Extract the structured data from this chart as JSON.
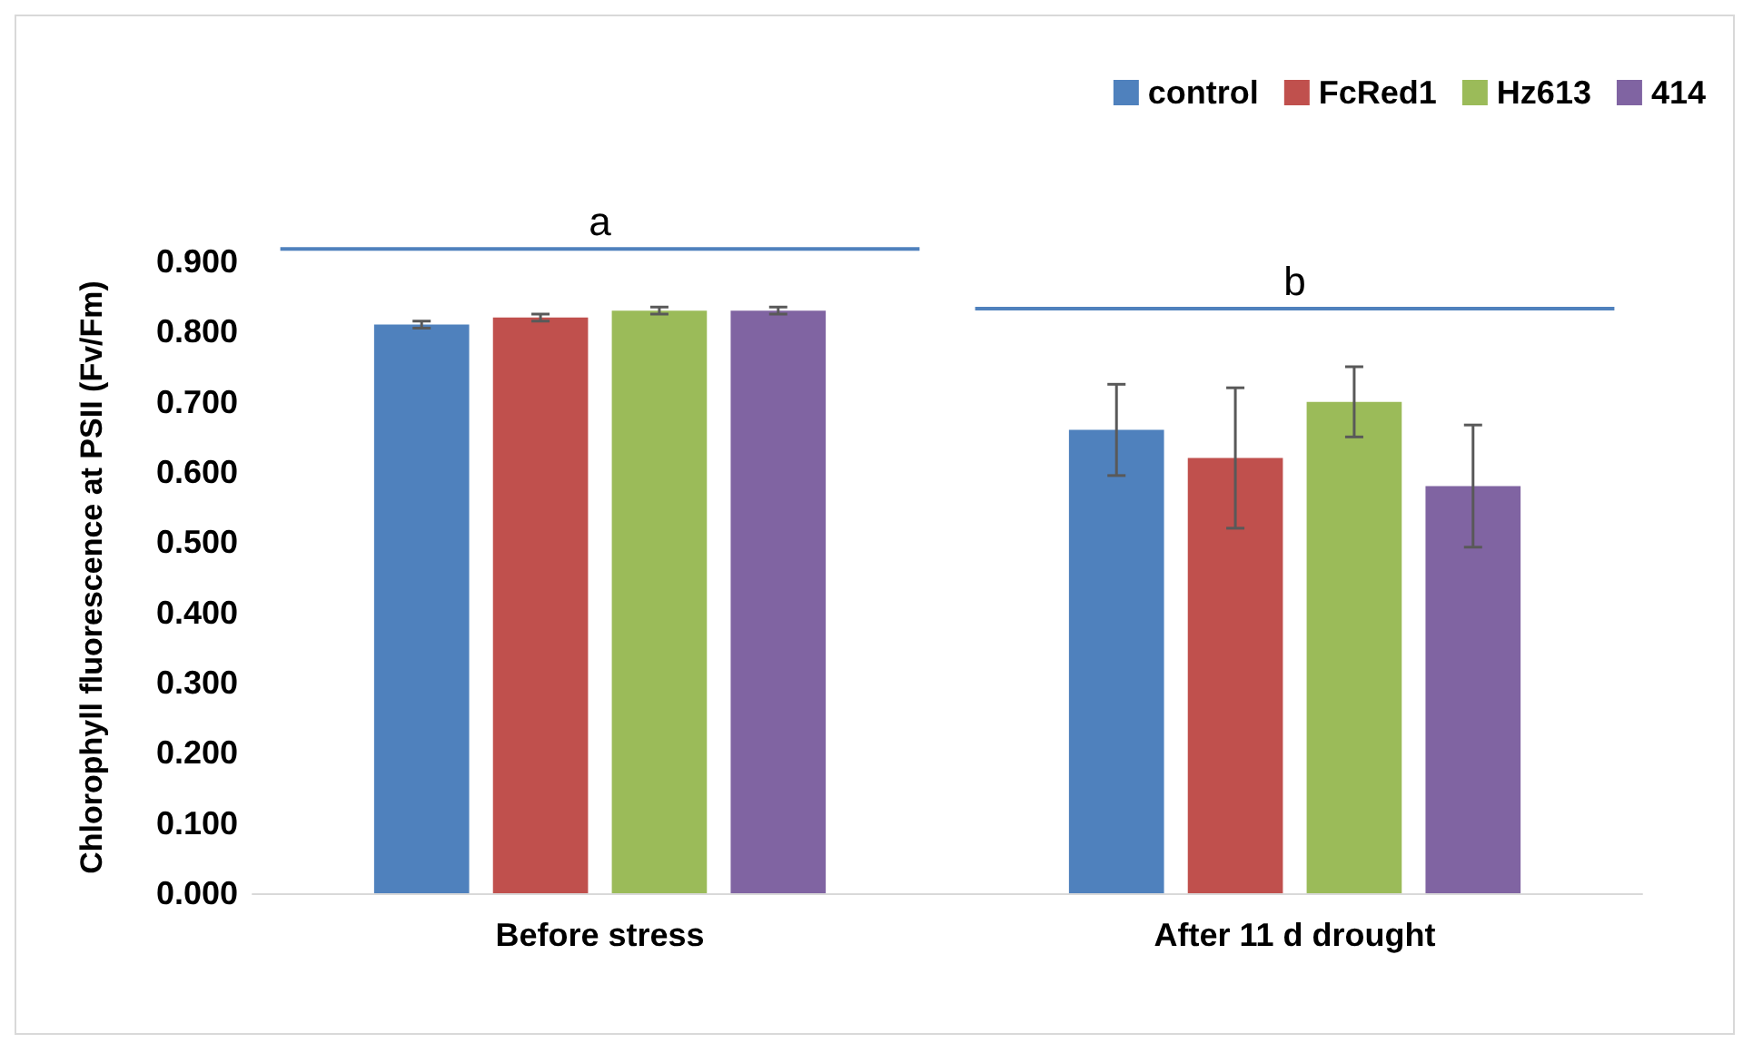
{
  "chart_data": {
    "type": "bar",
    "ylabel": "Chlorophyll fluorescence at PSII (Fv/Fm)",
    "categories": [
      "Before stress",
      "After 11 d drought"
    ],
    "series": [
      {
        "name": "control",
        "color": "#4f81bd",
        "values": [
          0.81,
          0.66
        ],
        "errors": [
          0.005,
          0.065
        ]
      },
      {
        "name": "FcRed1",
        "color": "#c0504d",
        "values": [
          0.82,
          0.62
        ],
        "errors": [
          0.005,
          0.1
        ]
      },
      {
        "name": "Hz613",
        "color": "#9bbb59",
        "values": [
          0.83,
          0.7
        ],
        "errors": [
          0.005,
          0.05
        ]
      },
      {
        "name": "414",
        "color": "#8064a2",
        "values": [
          0.83,
          0.58
        ],
        "errors": [
          0.005,
          0.087
        ]
      }
    ],
    "ylim": [
      0,
      0.9
    ],
    "yticks": [
      {
        "value": 0,
        "label": "0.000"
      },
      {
        "value": 0.1,
        "label": "0.100"
      },
      {
        "value": 0.2,
        "label": "0.200"
      },
      {
        "value": 0.3,
        "label": "0.300"
      },
      {
        "value": 0.4,
        "label": "0.400"
      },
      {
        "value": 0.5,
        "label": "0.500"
      },
      {
        "value": 0.6,
        "label": "0.600"
      },
      {
        "value": 0.7,
        "label": "0.700"
      },
      {
        "value": 0.8,
        "label": "0.800"
      },
      {
        "value": 0.9,
        "label": "0.900"
      }
    ],
    "annotations": [
      "a",
      "b"
    ],
    "grid": false,
    "legend": "top right"
  }
}
